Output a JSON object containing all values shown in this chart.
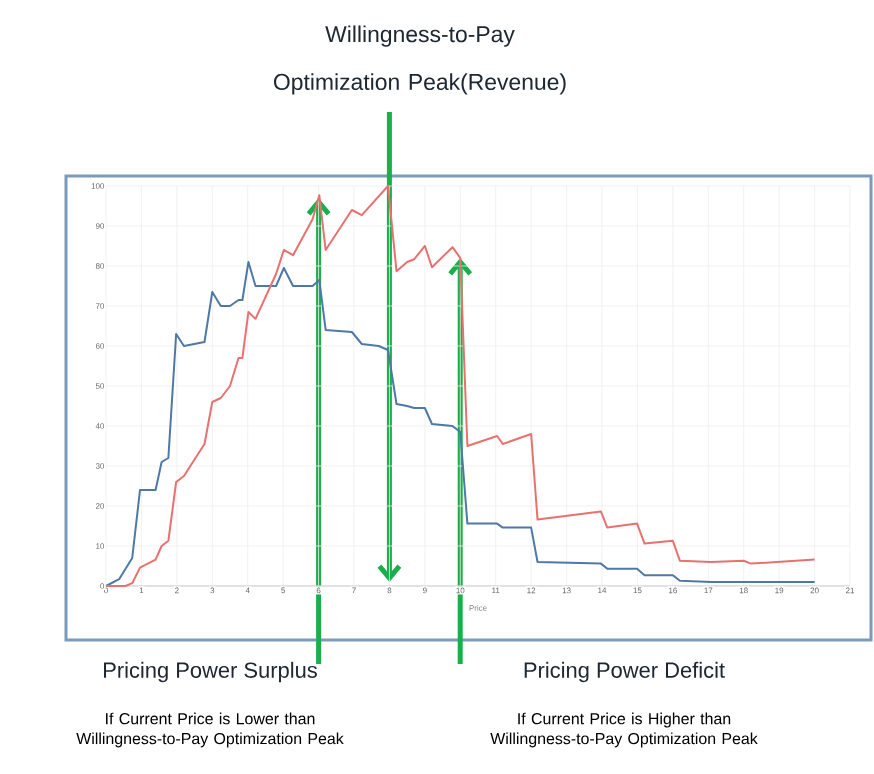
{
  "chart_data": {
    "type": "line",
    "xlabel": "Price",
    "xlim": [
      0,
      21
    ],
    "xticks": [
      0,
      1,
      2,
      3,
      4,
      5,
      6,
      7,
      8,
      9,
      10,
      11,
      12,
      13,
      14,
      15,
      16,
      17,
      18,
      19,
      20,
      21
    ],
    "ylim": [
      0,
      100
    ],
    "yticks": [
      0,
      10,
      20,
      30,
      40,
      50,
      60,
      70,
      80,
      90,
      100
    ],
    "grid": true,
    "marker": "none",
    "line_style": "solid",
    "series": [
      {
        "color": "#4e79a7",
        "x": [
          0,
          0.37,
          0.74,
          0.96,
          1.4,
          1.57,
          1.76,
          1.98,
          2.2,
          2.78,
          3,
          3.24,
          3.5,
          3.74,
          3.85,
          4.02,
          4.22,
          4.8,
          5.02,
          5.28,
          5.83,
          6.02,
          6.2,
          6.94,
          7.22,
          7.7,
          7.96,
          8.2,
          8.5,
          8.7,
          9,
          9.2,
          9.78,
          10,
          10.2,
          11.04,
          11.2,
          12,
          12.18,
          13.97,
          14.15,
          14.99,
          15.2,
          16,
          16.2,
          17.08,
          20
        ],
        "values": [
          0,
          1.7,
          7,
          24,
          24,
          31,
          32,
          63,
          60,
          61,
          73.5,
          70,
          70,
          71.5,
          71.5,
          81,
          75,
          75,
          79.5,
          75,
          75,
          76.5,
          64,
          63.5,
          60.5,
          60,
          59,
          45.5,
          45,
          44.5,
          44.5,
          40.5,
          40,
          38.5,
          15.6,
          15.6,
          14.6,
          14.6,
          6,
          5.6,
          4.3,
          4.3,
          2.7,
          2.7,
          1.3,
          1,
          1
        ]
      },
      {
        "color": "#e8716f",
        "x": [
          0,
          0.55,
          0.74,
          0.96,
          1.4,
          1.57,
          1.76,
          1.98,
          2.2,
          2.78,
          3,
          3.24,
          3.5,
          3.74,
          3.85,
          4.02,
          4.22,
          4.8,
          5.02,
          5.28,
          5.83,
          6.02,
          6.2,
          6.94,
          7.22,
          7.96,
          8.2,
          8.5,
          8.7,
          9,
          9.2,
          9.78,
          10,
          10.2,
          11.04,
          11.2,
          12,
          12.18,
          13.97,
          14.15,
          14.99,
          15.2,
          16,
          16.2,
          17.08,
          18,
          18.2,
          20
        ],
        "values": [
          0,
          0,
          0.7,
          4.6,
          6.6,
          10,
          11.3,
          26,
          27.5,
          35.5,
          46,
          47,
          50,
          57,
          57,
          68.5,
          66.8,
          78,
          84,
          82.7,
          91.7,
          97.7,
          84,
          94,
          92.7,
          100,
          78.7,
          81,
          81.7,
          85,
          79.7,
          84.7,
          82,
          35,
          37.5,
          35.5,
          38,
          16.6,
          18.6,
          14.6,
          15.6,
          10.6,
          11.3,
          6.3,
          6,
          6.3,
          5.6,
          6.6
        ]
      }
    ],
    "annotations": [
      "Willingness-to-Pay Optimization Peak(Revenue)",
      "Pricing Power Surplus",
      "If Current Price is Lower than Willingness-to-Pay Optimization Peak",
      "Pricing Power Deficit",
      "If Current Price is Higher than Willingness-to-Pay Optimization Peak"
    ]
  }
}
